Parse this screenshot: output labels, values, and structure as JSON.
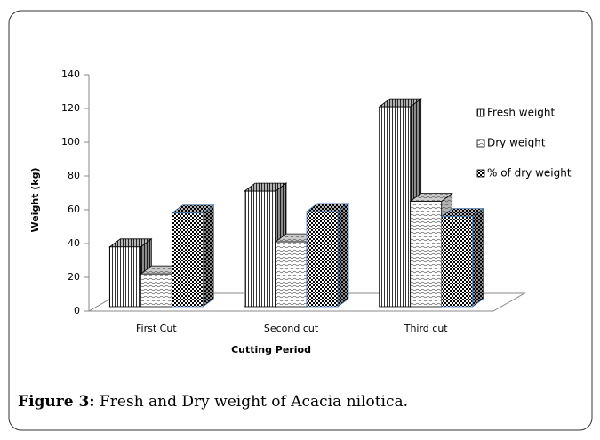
{
  "chart_data": {
    "type": "bar3d",
    "xlabel": "Cutting Period",
    "ylabel": "Weight (kg)",
    "categories": [
      "First Cut",
      "Second cut",
      "Third cut"
    ],
    "series": [
      {
        "name": "Fresh weight",
        "color": "#000000",
        "pattern": "vertical",
        "edge": "#000000",
        "values": [
          38,
          71,
          121
        ]
      },
      {
        "name": "Dry weight",
        "color": "#555555",
        "pattern": "wave",
        "edge": "#000000",
        "values": [
          22,
          41,
          65
        ]
      },
      {
        "name": "% of dry weight",
        "color": "#000000",
        "pattern": "checker",
        "edge": "#4a7ebb",
        "values": [
          58,
          59,
          56
        ]
      }
    ],
    "ylim": [
      0,
      140
    ],
    "yticks": [
      0,
      20,
      40,
      60,
      80,
      100,
      120,
      140
    ],
    "legend": "right"
  },
  "figure": {
    "label": "Figure 3:",
    "caption": "Fresh and Dry weight of Acacia nilotica."
  }
}
